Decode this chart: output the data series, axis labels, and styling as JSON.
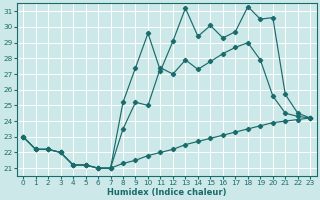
{
  "xlabel": "Humidex (Indice chaleur)",
  "bg_color": "#cce8e8",
  "grid_color": "#ffffff",
  "line_color": "#1a6b6b",
  "xlim": [
    -0.5,
    23.5
  ],
  "ylim": [
    20.5,
    31.5
  ],
  "xticks": [
    0,
    1,
    2,
    3,
    4,
    5,
    6,
    7,
    8,
    9,
    10,
    11,
    12,
    13,
    14,
    15,
    16,
    17,
    18,
    19,
    20,
    21,
    22,
    23
  ],
  "yticks": [
    21,
    22,
    23,
    24,
    25,
    26,
    27,
    28,
    29,
    30,
    31
  ],
  "line_bottom_x": [
    0,
    1,
    2,
    3,
    4,
    5,
    6,
    7,
    8,
    9,
    10,
    11,
    12,
    13,
    14,
    15,
    16,
    17,
    18,
    19,
    20,
    21,
    22,
    23
  ],
  "line_bottom_y": [
    23.0,
    22.2,
    22.2,
    22.0,
    21.2,
    21.2,
    21.0,
    21.0,
    21.3,
    21.5,
    21.8,
    22.0,
    22.2,
    22.5,
    22.7,
    22.9,
    23.1,
    23.3,
    23.5,
    23.7,
    23.9,
    24.0,
    24.1,
    24.2
  ],
  "line_middle_x": [
    0,
    1,
    2,
    3,
    4,
    5,
    6,
    7,
    8,
    9,
    10,
    11,
    12,
    13,
    14,
    15,
    16,
    17,
    18,
    19,
    20,
    21,
    22,
    23
  ],
  "line_middle_y": [
    23.0,
    22.2,
    22.2,
    22.0,
    21.2,
    21.2,
    21.0,
    21.0,
    23.5,
    25.2,
    25.0,
    27.4,
    27.0,
    27.9,
    27.3,
    27.8,
    28.3,
    28.7,
    29.0,
    27.9,
    25.6,
    24.5,
    24.3,
    24.2
  ],
  "line_top_x": [
    0,
    1,
    2,
    3,
    4,
    5,
    6,
    7,
    8,
    9,
    10,
    11,
    12,
    13,
    14,
    15,
    16,
    17,
    18,
    19,
    20,
    21,
    22,
    23
  ],
  "line_top_y": [
    23.0,
    22.2,
    22.2,
    22.0,
    21.2,
    21.2,
    21.0,
    21.0,
    25.2,
    27.4,
    29.6,
    27.2,
    29.1,
    31.2,
    29.4,
    30.1,
    29.3,
    29.7,
    31.3,
    30.5,
    30.6,
    25.7,
    24.5,
    24.2
  ]
}
